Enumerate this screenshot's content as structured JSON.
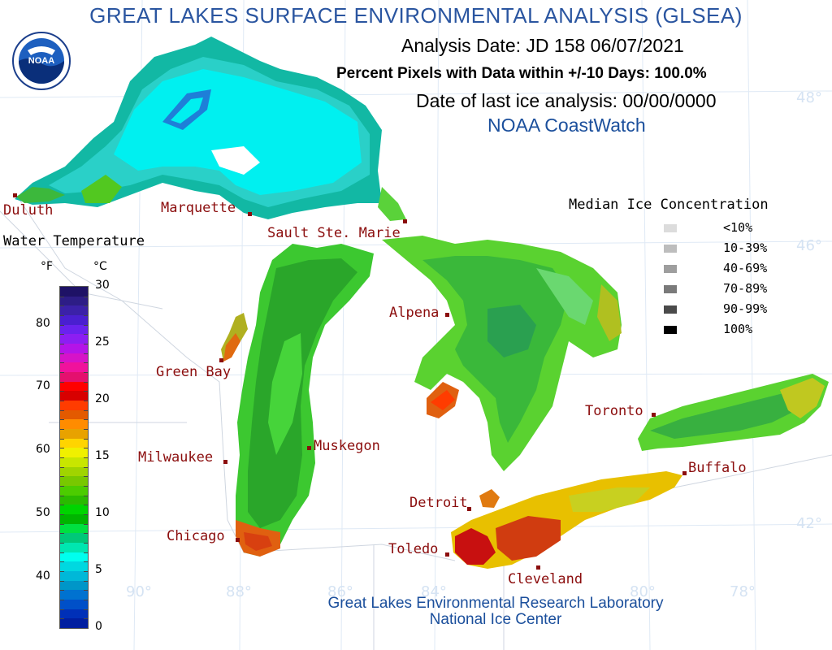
{
  "title": "GREAT LAKES SURFACE ENVIRONMENTAL ANALYSIS (GLSEA)",
  "analysis_date": "Analysis Date:  JD 158 06/07/2021",
  "percent_pixels": "Percent Pixels with Data within +/-10 Days: 100.0%",
  "last_ice": "Date of last ice analysis: 00/00/0000",
  "coastwatch": "NOAA CoastWatch",
  "logo_text": "NOAA",
  "credits": {
    "line1": "Great Lakes Environmental Research Laboratory",
    "line2": "National Ice Center"
  },
  "cities": {
    "duluth": "Duluth",
    "marquette": "Marquette",
    "sault": "Sault Ste. Marie",
    "green_bay": "Green Bay",
    "alpena": "Alpena",
    "milwaukee": "Milwaukee",
    "muskegon": "Muskegon",
    "toronto": "Toronto",
    "buffalo": "Buffalo",
    "detroit": "Detroit",
    "chicago": "Chicago",
    "toledo": "Toledo",
    "cleveland": "Cleveland"
  },
  "grid_labels": {
    "lat48": "48°",
    "lat46": "46°",
    "lat42": "42°",
    "lon90": "90°",
    "lon88": "88°",
    "lon86": "86°",
    "lon84": "84°",
    "lon80": "80°",
    "lon78": "78°"
  },
  "water_legend": {
    "title": "Water Temperature",
    "unit_f": "°F",
    "unit_c": "°C",
    "f_ticks": [
      "80",
      "70",
      "60",
      "50",
      "40"
    ],
    "c_ticks": [
      "30",
      "25",
      "20",
      "15",
      "10",
      "5",
      "0"
    ],
    "colors_top_to_bottom": [
      "#1e1266",
      "#2d1d86",
      "#3b21a8",
      "#4a1fd0",
      "#6a22ee",
      "#8c1ef2",
      "#b414e8",
      "#d613c8",
      "#f0129c",
      "#e4106e",
      "#ff0000",
      "#d80000",
      "#ff3c00",
      "#e35a00",
      "#ff8c00",
      "#e8a200",
      "#ffd400",
      "#f0f000",
      "#c8e600",
      "#a0d400",
      "#78c800",
      "#4ccc00",
      "#2aba00",
      "#00d400",
      "#00b400",
      "#00e040",
      "#00c878",
      "#00e6b0",
      "#00ffee",
      "#00d8e0",
      "#00b8d8",
      "#0096c8",
      "#0072d0",
      "#0050c8",
      "#0030b8",
      "#001ea0"
    ]
  },
  "ice_legend": {
    "title": "Median Ice Concentration",
    "items": [
      {
        "label": "<10%",
        "color": "#dcdcdc"
      },
      {
        "label": "10-39%",
        "color": "#bdbdbd"
      },
      {
        "label": "40-69%",
        "color": "#9e9e9e"
      },
      {
        "label": "70-89%",
        "color": "#7a7a7a"
      },
      {
        "label": "90-99%",
        "color": "#4a4a4a"
      },
      {
        "label": "100%",
        "color": "#000000"
      }
    ]
  }
}
